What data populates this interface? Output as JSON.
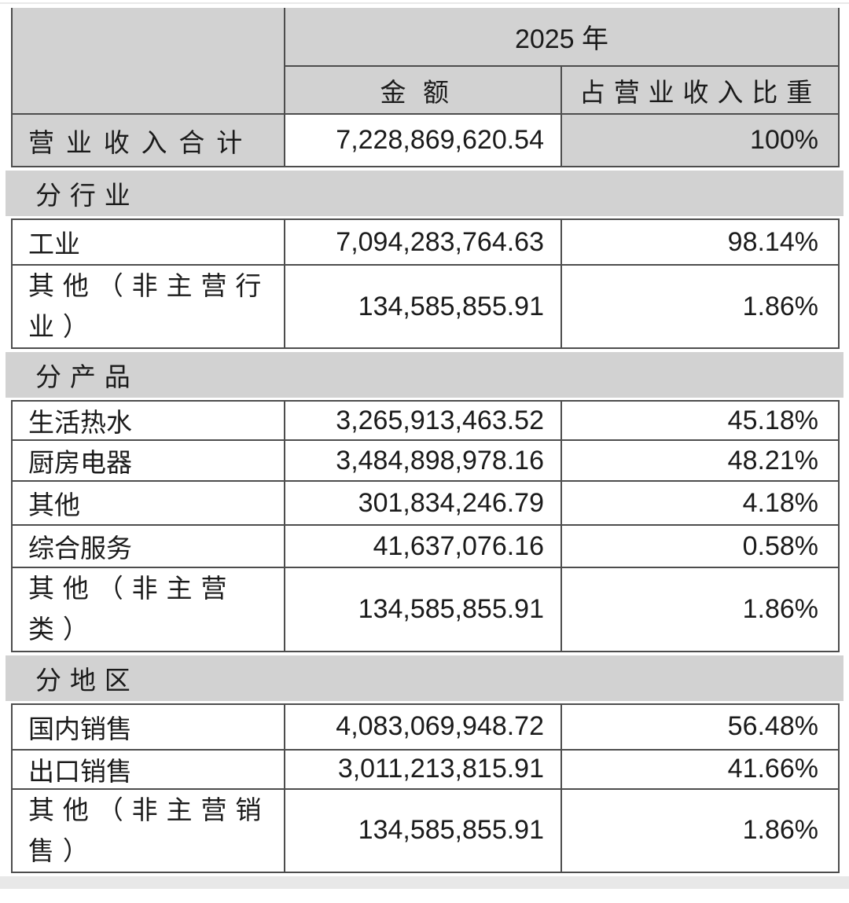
{
  "page": {
    "background": "#ffffff",
    "top_rule_color": "#e9e9e9",
    "bottom_strip_color": "#e8e8e8"
  },
  "table": {
    "colors": {
      "header_bg": "#d2d2d2",
      "section_bg": "#d2d2d2",
      "cell_bg": "#ffffff",
      "border": "#4d4d4d",
      "text": "#1b1b1b"
    },
    "header": {
      "year": "2025 年",
      "amount": "金额",
      "ratio": "占营业收入比重"
    },
    "total_row": {
      "label": "营业收入合计",
      "amount": "7,228,869,620.54",
      "ratio": "100%"
    },
    "sections": [
      {
        "title": "分行业",
        "rows": [
          {
            "label": "工业",
            "amount": "7,094,283,764.63",
            "ratio": "98.14%"
          },
          {
            "label": "其他（非主营行\n业）",
            "amount": "134,585,855.91",
            "ratio": "1.86%"
          }
        ]
      },
      {
        "title": "分产品",
        "rows": [
          {
            "label": "生活热水",
            "amount": "3,265,913,463.52",
            "ratio": "45.18%"
          },
          {
            "label": "厨房电器",
            "amount": "3,484,898,978.16",
            "ratio": "48.21%"
          },
          {
            "label": "其他",
            "amount": "301,834,246.79",
            "ratio": "4.18%"
          },
          {
            "label": "综合服务",
            "amount": "41,637,076.16",
            "ratio": "0.58%"
          },
          {
            "label": "其他（非主营\n类）",
            "amount": "134,585,855.91",
            "ratio": "1.86%"
          }
        ]
      },
      {
        "title": "分地区",
        "rows": [
          {
            "label": "国内销售",
            "amount": "4,083,069,948.72",
            "ratio": "56.48%"
          },
          {
            "label": "出口销售",
            "amount": "3,011,213,815.91",
            "ratio": "41.66%"
          },
          {
            "label": "其他（非主营销\n售）",
            "amount": "134,585,855.91",
            "ratio": "1.86%"
          }
        ]
      }
    ]
  }
}
